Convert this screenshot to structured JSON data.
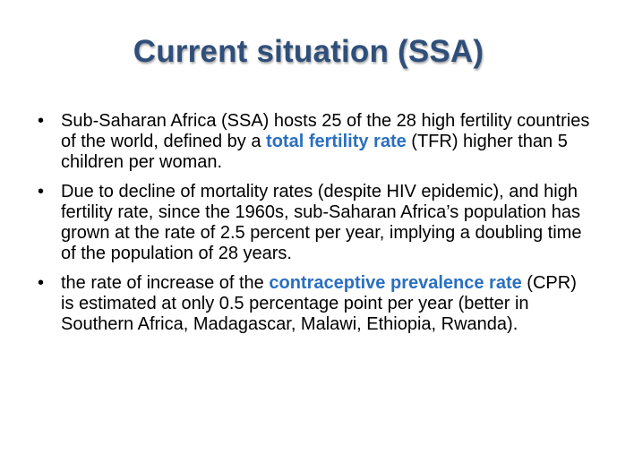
{
  "title": "Current situation (SSA)",
  "bullet_char": "•",
  "bullets": [
    {
      "parts": [
        {
          "text": "Sub-Saharan Africa (SSA) hosts 25 of the 28 high fertility countries of the world, defined by a ",
          "highlight": false
        },
        {
          "text": "total fertility rate",
          "highlight": true
        },
        {
          "text": " (TFR) higher than 5 children per woman.",
          "highlight": false
        }
      ]
    },
    {
      "parts": [
        {
          "text": "Due to decline of mortality rates (despite HIV epidemic),  and high fertility rate,  since the 1960s, sub-Saharan Africa’s population has grown at the rate of 2.5 percent per year, implying a doubling time of the population of 28 years.",
          "highlight": false
        }
      ]
    },
    {
      "parts": [
        {
          "text": "the rate of increase of the ",
          "highlight": false
        },
        {
          "text": "contraceptive prevalence rate",
          "highlight": true
        },
        {
          "text": " (CPR) is estimated at only 0.5 percentage point per year (better in Southern Africa, Madagascar, Malawi, Ethiopia, Rwanda).",
          "highlight": false
        }
      ]
    }
  ],
  "colors": {
    "title": "#2f4f7a",
    "highlight": "#2a6fc0",
    "text": "#000000",
    "background": "#ffffff"
  }
}
